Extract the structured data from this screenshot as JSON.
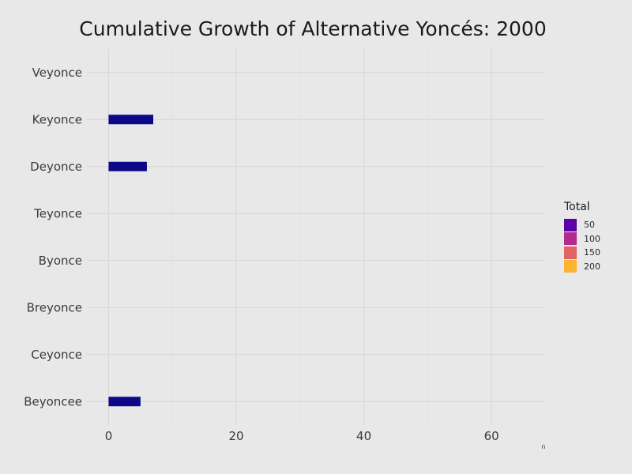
{
  "chart_data": {
    "type": "bar",
    "orientation": "horizontal",
    "title": "Cumulative Growth of Alternative Yoncés:  2000",
    "xlabel": "n",
    "ylabel": "",
    "categories": [
      "Veyonce",
      "Keyonce",
      "Deyonce",
      "Teyonce",
      "Byonce",
      "Breyonce",
      "Ceyonce",
      "Beyoncee"
    ],
    "values": [
      0,
      7,
      6,
      0,
      0,
      0,
      0,
      5
    ],
    "xlim": [
      -3.4,
      68.4
    ],
    "xticks": [
      "0",
      "20",
      "40",
      "60"
    ],
    "bar_color": "#0d0887",
    "grid": true,
    "legend": {
      "title": "Total",
      "placement": "right",
      "entries": [
        {
          "label": "50",
          "color": "#5c01a6"
        },
        {
          "label": "100",
          "color": "#b12a90"
        },
        {
          "label": "150",
          "color": "#e16462"
        },
        {
          "label": "200",
          "color": "#fdb32f"
        }
      ]
    }
  }
}
